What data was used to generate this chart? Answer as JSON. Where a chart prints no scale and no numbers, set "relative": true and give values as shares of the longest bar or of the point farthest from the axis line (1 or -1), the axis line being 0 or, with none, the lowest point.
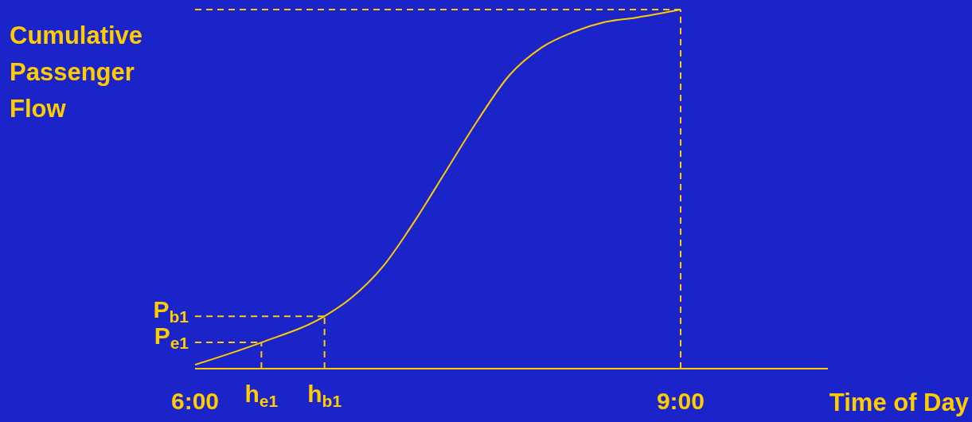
{
  "chart_data": {
    "type": "line",
    "xlabel": "Time of Day",
    "ylabel": "Cumulative Passenger Flow",
    "relative": true,
    "x": [
      6.0,
      6.41,
      6.8,
      6.96,
      7.16,
      7.35,
      7.55,
      7.75,
      7.94,
      8.14,
      8.34,
      8.53,
      8.73,
      9.0
    ],
    "series": [
      {
        "color": "#ffcc00",
        "values": [
          0.011,
          0.073,
          0.146,
          0.195,
          0.284,
          0.406,
          0.55,
          0.694,
          0.816,
          0.894,
          0.938,
          0.965,
          0.978,
          1.0
        ]
      }
    ],
    "xlim": [
      6,
      9.91
    ],
    "xticks": [
      {
        "value": 6,
        "label": "6:00"
      },
      {
        "value": 9,
        "label": "9:00"
      }
    ],
    "ref_lines": [
      {
        "axis": "x",
        "value": 6.41,
        "label": "h$_{e1}$",
        "color": "#ffcc00",
        "line_style": "dashed"
      },
      {
        "axis": "x",
        "value": 6.8,
        "label": "h$_{b1}$",
        "color": "#ffcc00",
        "line_style": "dashed"
      },
      {
        "axis": "x",
        "value": 9.0,
        "label": null,
        "color": "#ffcc00",
        "line_style": "dashed"
      },
      {
        "axis": "y",
        "value": 0.073,
        "label": "P$_{e1}$",
        "color": "#ffcc00",
        "line_style": "dashed"
      },
      {
        "axis": "y",
        "value": 0.146,
        "label": "P$_{b1}$",
        "color": "#ffcc00",
        "line_style": "dashed"
      },
      {
        "axis": "y",
        "value": 1.0,
        "label": null,
        "color": "#ffcc00",
        "line_style": "dashed"
      }
    ],
    "line_style": "solid",
    "marker": "none",
    "grid": false,
    "legend": false
  }
}
